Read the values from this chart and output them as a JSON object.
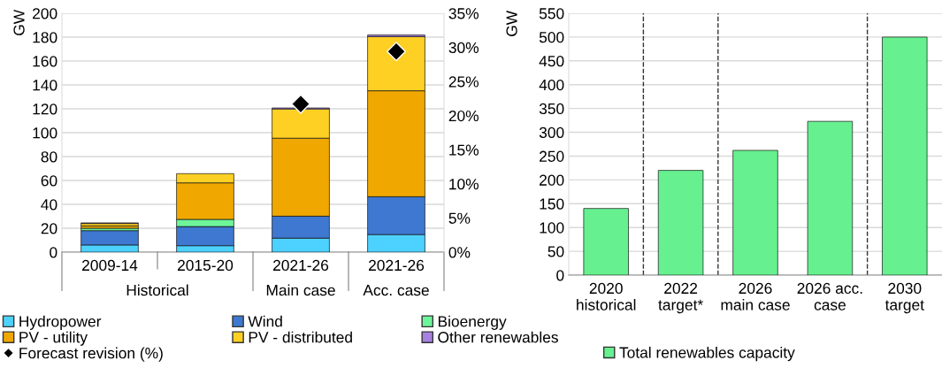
{
  "chart_data": [
    {
      "type": "bar",
      "stacked": true,
      "ylabel": "GW",
      "categories": [
        "2009-14",
        "2015-20",
        "2021-26",
        "2021-26"
      ],
      "series": [
        {
          "name": "Hydropower",
          "color": "#4dd2ff",
          "values": [
            6,
            5.4,
            11.7,
            14.7
          ]
        },
        {
          "name": "Wind",
          "color": "#3e78d0",
          "values": [
            12,
            16,
            18.4,
            31.7
          ]
        },
        {
          "name": "Bioenergy",
          "color": "#6ef59a",
          "values": [
            2,
            6,
            null,
            null
          ]
        },
        {
          "name": "PV - utility",
          "color": "#f0a800",
          "values": [
            2,
            30.6,
            65.3,
            88.7
          ]
        },
        {
          "name": "PV - distributed",
          "color": "#fdd023",
          "values": [
            2,
            7.7,
            24.5,
            45.3
          ]
        },
        {
          "name": "Other renewables",
          "color": "#a780e0",
          "values": [
            0.5,
            null,
            0.8,
            1.4
          ]
        },
        {
          "name": "Forecast revision (%)",
          "type": "scatter",
          "axis": "y2",
          "marker": "diamond",
          "color": "#000000",
          "values": [
            null,
            null,
            21.7,
            29.4
          ]
        }
      ],
      "ylim": [
        0,
        200
      ],
      "yticks": [
        0,
        20,
        40,
        60,
        80,
        100,
        120,
        140,
        160,
        180,
        200
      ],
      "y2lim": [
        0,
        35
      ],
      "y2ticks": [
        {
          "value": 0,
          "label": "0%"
        },
        {
          "value": 5,
          "label": "5%"
        },
        {
          "value": 10,
          "label": "10%"
        },
        {
          "value": 15,
          "label": "15%"
        },
        {
          "value": 20,
          "label": "20%"
        },
        {
          "value": 25,
          "label": "25%"
        },
        {
          "value": 30,
          "label": "30%"
        },
        {
          "value": 35,
          "label": "35%"
        }
      ],
      "annotations": [
        "Historical",
        "Main case",
        "Acc. case"
      ],
      "grid": "y",
      "legend": "bottom"
    },
    {
      "type": "bar",
      "ylabel": "GW",
      "categories": [
        "2020\nhistorical",
        "2022\ntarget*",
        "2026\nmain case",
        "2026 acc.\ncase",
        "2030\ntarget"
      ],
      "series": [
        {
          "name": "Total renewables capacity",
          "color": "#66f08f",
          "values": [
            140,
            220,
            262,
            323,
            500
          ]
        }
      ],
      "ylim": [
        0,
        550
      ],
      "yticks": [
        0,
        50,
        100,
        150,
        200,
        250,
        300,
        350,
        400,
        450,
        500,
        550
      ],
      "grid": "y",
      "legend": "bottom"
    }
  ]
}
